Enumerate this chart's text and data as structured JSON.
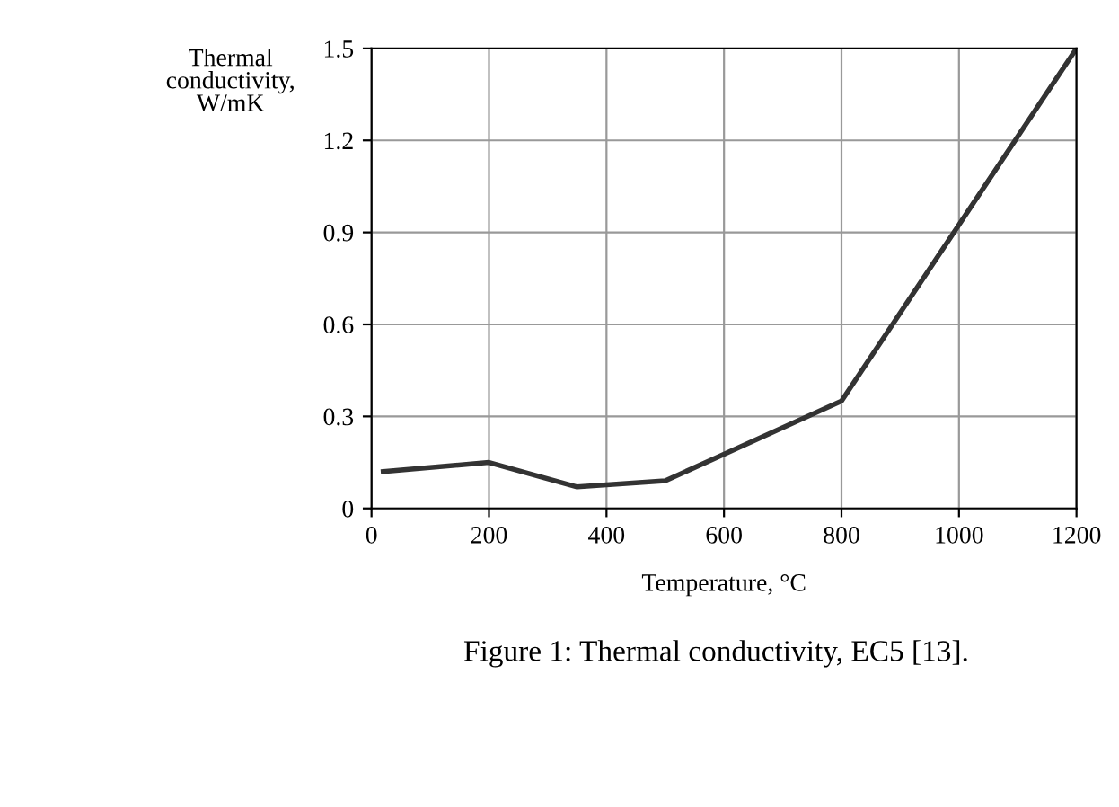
{
  "chart_data": {
    "type": "line",
    "xlabel": "Temperature, °C",
    "ylabel": "Thermal\nconductivity,\nW/mK",
    "annotations": [
      "Figure 1: Thermal conductivity, EC5 [13]."
    ],
    "x": [
      20,
      200,
      350,
      500,
      800,
      1200
    ],
    "series": [
      {
        "color": "#333333",
        "values": [
          0.12,
          0.15,
          0.07,
          0.09,
          0.35,
          1.5
        ]
      }
    ],
    "xlim": [
      0,
      1200
    ],
    "xticks": [
      0,
      200,
      400,
      600,
      800,
      1000,
      1200
    ],
    "ylim": [
      0,
      1.5
    ],
    "yticks": [
      0,
      0.3,
      0.6,
      0.9,
      1.2,
      1.5
    ],
    "grid": true,
    "legend": false,
    "marker": "none",
    "line_style": "solid"
  }
}
